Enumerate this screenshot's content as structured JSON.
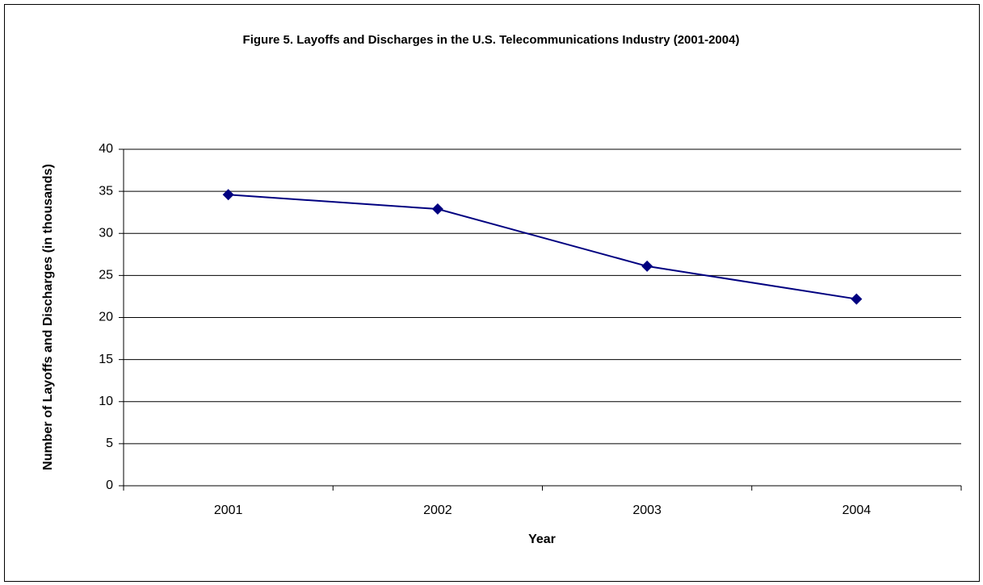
{
  "chart_data": {
    "type": "line",
    "title": "Figure 5. Layoffs and Discharges in the U.S. Telecommunications Industry (2001-2004)",
    "x_label": "Year",
    "y_label": "Number of Layoffs and Discharges (in thousands)",
    "categories": [
      "2001",
      "2002",
      "2003",
      "2004"
    ],
    "values": [
      34.6,
      32.9,
      26.1,
      22.2
    ],
    "color": "#000080",
    "ylim": [
      0,
      40
    ],
    "yticks": [
      0,
      5,
      10,
      15,
      20,
      25,
      30,
      35,
      40
    ],
    "grid": true
  }
}
